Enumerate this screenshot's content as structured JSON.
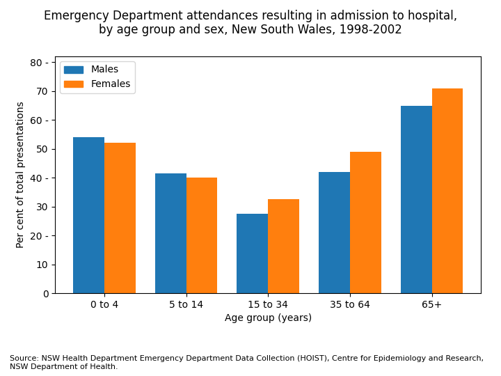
{
  "chart_data": {
    "type": "bar",
    "title": "Emergency Department attendances resulting in admission to hospital,\nby age group and sex, New South Wales, 1998-2002",
    "categories": [
      "0 to 4",
      "5 to 14",
      "15 to 34",
      "35 to 64",
      "65+"
    ],
    "series": [
      {
        "name": "Males",
        "values": [
          54,
          41.5,
          27.5,
          42,
          65
        ]
      },
      {
        "name": "Females",
        "values": [
          52,
          40,
          32.5,
          49,
          71
        ]
      }
    ],
    "xlabel": "Age group (years)",
    "ylabel": "Per cent of total presentations",
    "ylim": [
      0,
      82
    ],
    "yticks": [
      0,
      10,
      {
        "value": 20,
        "label": "20 -"
      },
      30,
      {
        "value": 40,
        "label": "40 -"
      },
      50,
      {
        "value": 60,
        "label": "60 -"
      },
      70,
      {
        "value": 80,
        "label": "80 -"
      }
    ],
    "grid": false,
    "legend": "upper left",
    "annotations": [
      "Source: NSW Health Department Emergency Department Data Collection (HOIST), Centre for Epidemiology and Research, NSW Department of Health."
    ]
  }
}
